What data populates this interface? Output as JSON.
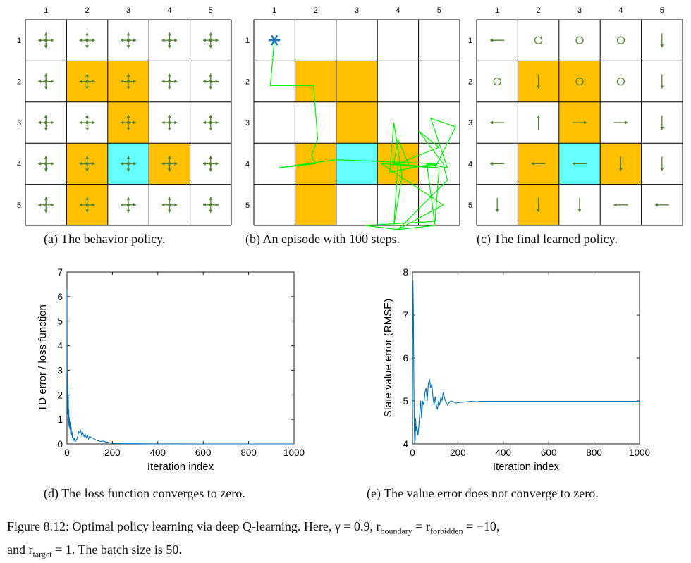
{
  "grid": {
    "col_labels": [
      "1",
      "2",
      "3",
      "4",
      "5"
    ],
    "row_labels": [
      "1",
      "2",
      "3",
      "4",
      "5"
    ],
    "colors": {
      "forbidden": "#ffc000",
      "target": "#66ffff",
      "line": "#000000",
      "arrow": "#548235",
      "trajectory": "#00ee00",
      "star": "#1f77b4"
    },
    "forbidden_cells": [
      [
        2,
        2
      ],
      [
        2,
        3
      ],
      [
        3,
        3
      ],
      [
        4,
        2
      ],
      [
        4,
        4
      ],
      [
        5,
        2
      ]
    ],
    "target_cells": [
      [
        4,
        3
      ]
    ]
  },
  "panel_a": {
    "caption": "(a) The behavior policy.",
    "policy": "uniform-all-actions"
  },
  "panel_b": {
    "caption": "(b) An episode with 100 steps.",
    "start_marker": "asterisk",
    "start_cell": [
      1,
      1
    ]
  },
  "panel_c": {
    "caption": "(c) The final learned policy.",
    "policy": [
      [
        "left",
        "stay",
        "stay",
        "stay",
        "down"
      ],
      [
        "stay",
        "down",
        "stay",
        "stay",
        "down"
      ],
      [
        "left",
        "up",
        "right",
        "right",
        "down"
      ],
      [
        "left",
        "left",
        "left",
        "down",
        "down"
      ],
      [
        "down",
        "down",
        "down",
        "left",
        "left"
      ]
    ]
  },
  "chart_data": [
    {
      "type": "line",
      "title": "",
      "caption": "(d) The loss function converges to zero.",
      "xlabel": "Iteration index",
      "ylabel": "TD error / loss function",
      "xlim": [
        0,
        1000
      ],
      "ylim": [
        0,
        7
      ],
      "xticks": [
        "0",
        "200",
        "400",
        "600",
        "800",
        "1000"
      ],
      "yticks": [
        "0",
        "1",
        "2",
        "3",
        "4",
        "5",
        "6",
        "7"
      ],
      "grid": false,
      "series": [
        {
          "color": "#0072bd",
          "x": [
            0,
            1,
            2,
            3,
            4,
            5,
            6,
            7,
            8,
            9,
            10,
            12,
            14,
            16,
            18,
            20,
            22,
            24,
            26,
            28,
            30,
            33,
            36,
            40,
            44,
            48,
            52,
            56,
            60,
            65,
            70,
            75,
            80,
            85,
            90,
            95,
            100,
            110,
            120,
            130,
            140,
            150,
            160,
            170,
            180,
            190,
            200,
            220,
            250,
            300,
            350,
            400,
            500,
            600,
            700,
            800,
            900,
            1000
          ],
          "y": [
            6.3,
            3.0,
            2.6,
            1.2,
            2.4,
            0.9,
            2.0,
            0.8,
            1.4,
            0.7,
            1.1,
            0.6,
            0.9,
            0.4,
            0.7,
            0.35,
            0.5,
            0.25,
            0.3,
            0.2,
            0.15,
            0.25,
            0.1,
            0.15,
            0.2,
            0.35,
            0.5,
            0.45,
            0.55,
            0.35,
            0.45,
            0.3,
            0.4,
            0.25,
            0.35,
            0.2,
            0.3,
            0.25,
            0.2,
            0.15,
            0.12,
            0.1,
            0.12,
            0.08,
            0.07,
            0.05,
            0.03,
            0.02,
            0.01,
            0.01,
            0.005,
            0.003,
            0.002,
            0.001,
            0.001,
            0.001,
            0.001,
            0.001
          ]
        }
      ]
    },
    {
      "type": "line",
      "title": "",
      "caption": "(e) The value error does not converge to zero.",
      "xlabel": "Iteration index",
      "ylabel": "State value error (RMSE)",
      "xlim": [
        0,
        1000
      ],
      "ylim": [
        4,
        8
      ],
      "xticks": [
        "0",
        "200",
        "400",
        "600",
        "800",
        "1000"
      ],
      "yticks": [
        "4",
        "5",
        "6",
        "7",
        "8"
      ],
      "grid": false,
      "series": [
        {
          "color": "#0072bd",
          "x": [
            0,
            2,
            4,
            6,
            8,
            10,
            12,
            14,
            16,
            18,
            20,
            24,
            28,
            32,
            36,
            40,
            45,
            50,
            55,
            60,
            65,
            70,
            75,
            80,
            85,
            90,
            95,
            100,
            105,
            110,
            115,
            120,
            125,
            130,
            135,
            140,
            145,
            150,
            155,
            160,
            170,
            180,
            190,
            200,
            220,
            240,
            260,
            280,
            300,
            350,
            400,
            500,
            600,
            700,
            800,
            900,
            1000
          ],
          "y": [
            4.8,
            7.8,
            7.1,
            5.5,
            4.3,
            4.0,
            4.1,
            4.6,
            4.3,
            4.4,
            4.4,
            4.2,
            4.4,
            4.7,
            5.0,
            4.6,
            5.0,
            4.9,
            5.2,
            5.3,
            5.0,
            5.4,
            5.5,
            5.3,
            5.4,
            5.1,
            4.9,
            5.1,
            4.9,
            4.8,
            5.0,
            4.9,
            5.1,
            5.0,
            5.2,
            5.1,
            5.0,
            4.95,
            4.9,
            4.95,
            5.0,
            4.98,
            4.95,
            4.96,
            4.97,
            4.98,
            4.99,
            4.98,
            4.99,
            4.99,
            4.99,
            4.99,
            4.99,
            4.99,
            4.99,
            4.99,
            4.99
          ]
        }
      ]
    }
  ],
  "figure_caption": {
    "line1": "Figure 8.12: Optimal policy learning via deep Q-learning. Here, γ = 0.9, r",
    "sub_boundary": "boundary",
    "eq1": " = r",
    "sub_forbidden": "forbidden",
    "eq2": " = −10,",
    "line2a": "and r",
    "sub_target": "target",
    "line2b": " = 1. The batch size is 50."
  }
}
